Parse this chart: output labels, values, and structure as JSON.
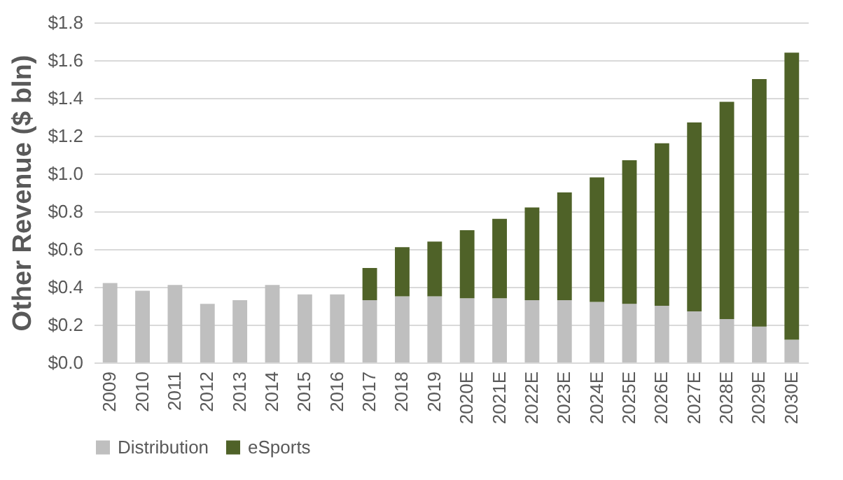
{
  "chart_data": {
    "type": "bar",
    "stacked": true,
    "ylabel": "Other Revenue ($ bln)",
    "categories": [
      "2009",
      "2010",
      "2011",
      "2012",
      "2013",
      "2014",
      "2015",
      "2016",
      "2017",
      "2018",
      "2019",
      "2020E",
      "2021E",
      "2022E",
      "2023E",
      "2024E",
      "2025E",
      "2026E",
      "2027E",
      "2028E",
      "2029E",
      "2030E"
    ],
    "series": [
      {
        "name": "Distribution",
        "color": "#bfbfbf",
        "values": [
          0.42,
          0.38,
          0.41,
          0.31,
          0.33,
          0.41,
          0.36,
          0.36,
          0.33,
          0.35,
          0.35,
          0.34,
          0.34,
          0.33,
          0.33,
          0.32,
          0.31,
          0.3,
          0.27,
          0.23,
          0.19,
          0.12
        ]
      },
      {
        "name": "eSports",
        "color": "#4f6228",
        "values": [
          null,
          null,
          null,
          null,
          null,
          null,
          null,
          null,
          0.17,
          0.26,
          0.29,
          0.36,
          0.42,
          0.49,
          0.57,
          0.66,
          0.76,
          0.86,
          1.0,
          1.15,
          1.31,
          1.52
        ]
      }
    ],
    "ylim": [
      0,
      1.8
    ],
    "yticks": [
      {
        "value": 0,
        "label": "$0.0"
      },
      {
        "value": 0.2,
        "label": "$0.2"
      },
      {
        "value": 0.4,
        "label": "$0.4"
      },
      {
        "value": 0.6,
        "label": "$0.6"
      },
      {
        "value": 0.8,
        "label": "$0.8"
      },
      {
        "value": 1.0,
        "label": "$1.0"
      },
      {
        "value": 1.2,
        "label": "$1.2"
      },
      {
        "value": 1.4,
        "label": "$1.4"
      },
      {
        "value": 1.6,
        "label": "$1.6"
      },
      {
        "value": 1.8,
        "label": "$1.8"
      }
    ],
    "grid": "y",
    "legend": "bottom"
  }
}
